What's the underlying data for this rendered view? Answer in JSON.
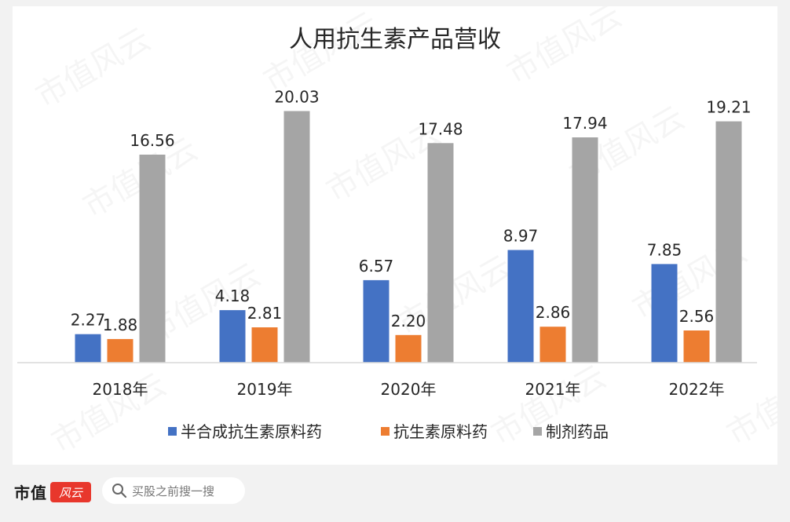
{
  "chart_data": {
    "type": "bar",
    "title": "人用抗生素产品营收",
    "categories": [
      "2018年",
      "2019年",
      "2020年",
      "2021年",
      "2022年"
    ],
    "series": [
      {
        "name": "半合成抗生素原料药",
        "color": "#4472c4",
        "values": [
          2.27,
          4.18,
          6.57,
          8.97,
          7.85
        ],
        "labels": [
          "2.27",
          "4.18",
          "6.57",
          "8.97",
          "7.85"
        ]
      },
      {
        "name": "抗生素原料药",
        "color": "#ed7d31",
        "values": [
          1.88,
          2.81,
          2.2,
          2.86,
          2.56
        ],
        "labels": [
          "1.88",
          "2.81",
          "2.20",
          "2.86",
          "2.56"
        ]
      },
      {
        "name": "制剂药品",
        "color": "#a5a5a5",
        "values": [
          16.56,
          20.03,
          17.48,
          17.94,
          19.21
        ],
        "labels": [
          "16.56",
          "20.03",
          "17.48",
          "17.94",
          "19.21"
        ]
      }
    ],
    "ylim": [
      0,
      24
    ],
    "grid": false,
    "legend_position": "bottom",
    "data_labels": true
  },
  "watermark": "市值风云",
  "footer": {
    "brand": "市值",
    "brand_logo_text": "风云",
    "search_placeholder": "买股之前搜一搜",
    "search_icon": "search-icon"
  }
}
